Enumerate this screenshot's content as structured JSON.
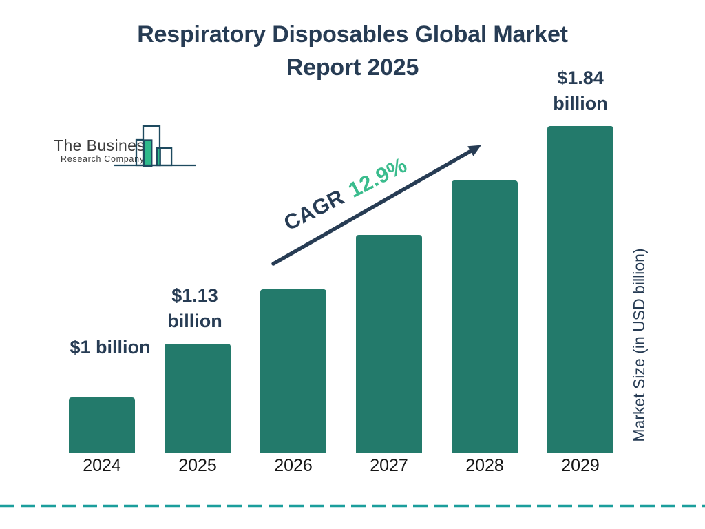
{
  "page": {
    "background": "#ffffff"
  },
  "title": {
    "line1": "Respiratory Disposables Global Market",
    "line2": "Report 2025",
    "color": "#273c54"
  },
  "logo": {
    "line1": "The Business",
    "line2": "Research Company",
    "text_color": "#3c3c3c",
    "outline_color": "#1e4a5f",
    "green_color": "#2eba8b"
  },
  "annotation": {
    "cagr_label": "CAGR",
    "cagr_value": "12.9%",
    "label_color": "#273c54",
    "value_color": "#3abc8d",
    "arrow_color": "#273c54"
  },
  "chart_data": {
    "type": "bar",
    "title": "Respiratory Disposables Global Market Report 2025",
    "categories": [
      "2024",
      "2025",
      "2026",
      "2027",
      "2028",
      "2029"
    ],
    "values": [
      1.0,
      1.13,
      null,
      null,
      null,
      1.84
    ],
    "unit": "USD billion",
    "value_labels": [
      {
        "category": "2024",
        "lines": [
          "$1 billion"
        ]
      },
      {
        "category": "2025",
        "lines": [
          "$1.13",
          "billion"
        ]
      },
      {
        "category": "2029",
        "lines": [
          "$1.84",
          "billion"
        ]
      }
    ],
    "cagr": "12.9%",
    "ylabel": "Market Size (in USD billion)",
    "xlabel": "",
    "bar_color": "#237a6b",
    "legend": false,
    "grid": false,
    "axis_lines": false,
    "ylabel_position": "right"
  },
  "footer": {
    "divider_color": "#1b9e9c",
    "divider_style": "dashed"
  }
}
